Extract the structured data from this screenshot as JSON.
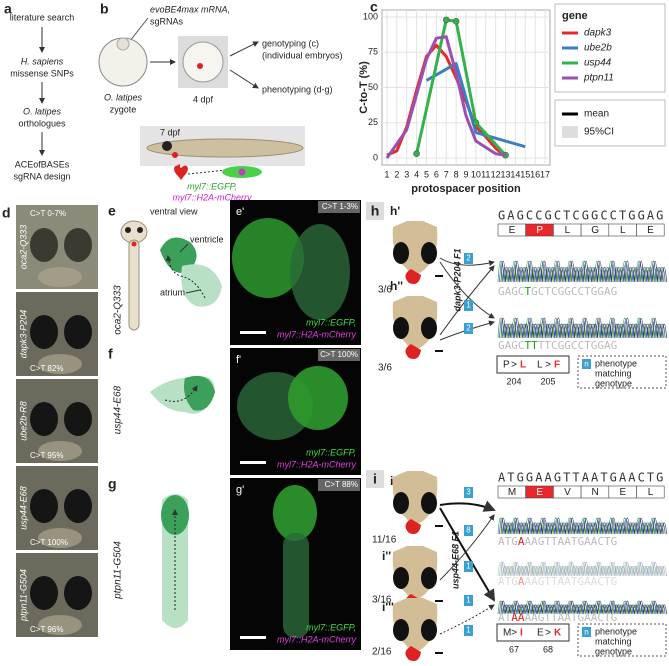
{
  "panel_a": {
    "label": "a",
    "steps": [
      [
        "literature search"
      ],
      [
        "H. sapiens",
        "missense SNPs"
      ],
      [
        "O. latipes",
        "orthologues"
      ],
      [
        "ACEofBASEs",
        "sgRNA design"
      ]
    ]
  },
  "panel_b": {
    "label": "b",
    "injection": [
      "evoBE4max mRNA,",
      "sgRNAs"
    ],
    "zygote": [
      "O. latipes",
      "zygote"
    ],
    "stage1": "4 dpf",
    "genotyping": [
      "genotyping (c)",
      "(individual embryos)"
    ],
    "phenotyping": "phenotyping (d-g)",
    "stage2": "7 dpf",
    "reporters": [
      "myl7::EGFP,",
      "myl7::H2A-mCherry"
    ]
  },
  "chart_data": {
    "type": "line",
    "label": "c",
    "y_label": "C-to-T (%)",
    "x_label": "protospacer position",
    "legend_title": "gene",
    "legend_extra": [
      "mean",
      "95%CI"
    ],
    "grid": true,
    "xlim": [
      0.5,
      17.5
    ],
    "xticks": [
      1,
      2,
      3,
      4,
      5,
      6,
      7,
      8,
      9,
      10,
      11,
      12,
      13,
      14,
      15,
      16,
      17
    ],
    "ylim": [
      -5,
      105
    ],
    "yticks": [
      0,
      25,
      50,
      75,
      100
    ],
    "series": [
      {
        "name": "dapk3",
        "color": "#e8282b",
        "x": [
          1,
          2,
          3,
          4,
          5,
          6,
          7,
          8,
          9,
          10,
          11,
          12,
          13
        ],
        "values": [
          2,
          5,
          22,
          48,
          72,
          80,
          72,
          57,
          40,
          22,
          15,
          7,
          1
        ]
      },
      {
        "name": "ube2b",
        "color": "#3a7fc1",
        "x": [
          5,
          8,
          10,
          15
        ],
        "values": [
          55,
          67,
          18,
          8
        ]
      },
      {
        "name": "usp44",
        "color": "#33b24a",
        "x": [
          4,
          7,
          8,
          10,
          13
        ],
        "values": [
          3,
          98,
          97,
          25,
          2
        ],
        "markers": true
      },
      {
        "name": "ptpn11",
        "color": "#9c4fb3",
        "x": [
          1,
          3,
          5,
          6,
          7,
          8,
          9,
          10,
          12,
          13
        ],
        "values": [
          0,
          20,
          70,
          85,
          86,
          60,
          30,
          12,
          3,
          2
        ]
      }
    ]
  },
  "panel_d": {
    "label": "d",
    "images": [
      {
        "allele": "oca2-Q333",
        "efficiency": "C>T 0-7%"
      },
      {
        "allele": "dapk3-P204",
        "efficiency": "C>T 82%"
      },
      {
        "allele": "ube2b-R8",
        "efficiency": "C>T 95%"
      },
      {
        "allele": "usp44-E68",
        "efficiency": "C>T 100%"
      },
      {
        "allele": "ptpn11-G504",
        "efficiency": "C>T 96%"
      }
    ]
  },
  "panel_efg": {
    "e": {
      "label": "e",
      "view": "ventral view",
      "ventricle": "ventricle",
      "atrium": "atrium",
      "allele": "oca2-Q333"
    },
    "f": {
      "label": "f",
      "allele": "usp44-E68"
    },
    "g": {
      "label": "g",
      "allele": "ptpn11-G504"
    },
    "confocal": [
      {
        "label": "e'",
        "efficiency": "C>T 1-3%"
      },
      {
        "label": "f'",
        "efficiency": "C>T 100%"
      },
      {
        "label": "g'",
        "efficiency": "C>T 88%"
      }
    ],
    "reporters": [
      "myl7::EGFP,",
      "myl7::H2A-mCherry"
    ]
  },
  "panel_h": {
    "label": "h",
    "line": "dapk3-P204 F1",
    "sublabels": [
      "h'",
      "h''"
    ],
    "ratios": [
      "3/6",
      "3/6"
    ],
    "counts": [
      "2",
      "1",
      "2"
    ],
    "sequence": "GAGCCGCTCGGCCTGGAG",
    "amino_acids": [
      "E",
      "P",
      "L",
      "G",
      "L",
      "E"
    ],
    "reads": [
      [
        "GAGC",
        "T",
        "GCTCGGCCTGGAG"
      ],
      [
        "GAGC",
        "TT",
        "TTCGGCCTGGAG"
      ]
    ],
    "sep": ">",
    "substitutions": [
      {
        "from": "P",
        "to": "L",
        "position": 204
      },
      {
        "from": "L",
        "to": "F",
        "position": 205
      }
    ],
    "key": {
      "symbol": "n",
      "text": [
        "phenotype",
        "matching",
        "genotype"
      ]
    }
  },
  "panel_i": {
    "label": "i",
    "line": "usp44-E68 F1",
    "sublabels": [
      "i'",
      "i''",
      "i'''"
    ],
    "ratios": [
      "11/16",
      "3/16",
      "2/16"
    ],
    "counts": [
      "3",
      "8",
      "1",
      "1",
      "1"
    ],
    "sequence": "ATGGAAGTTAATGAACTG",
    "amino_acids": [
      "M",
      "E",
      "V",
      "N",
      "E",
      "L"
    ],
    "reads": [
      [
        "ATG",
        "A",
        "AAGTTAATGAACTG"
      ],
      [
        "ATG",
        "A",
        "AAGTTAATGAACTG"
      ],
      [
        "AT",
        "AA",
        "AAGTTAATGAACTG"
      ]
    ],
    "sep": ">",
    "substitutions": [
      {
        "from": "M",
        "to": "I",
        "position": 67
      },
      {
        "from": "E",
        "to": "K",
        "position": 68
      }
    ],
    "key": {
      "symbol": "n",
      "text": [
        "phenotype",
        "matching",
        "genotype"
      ]
    }
  }
}
